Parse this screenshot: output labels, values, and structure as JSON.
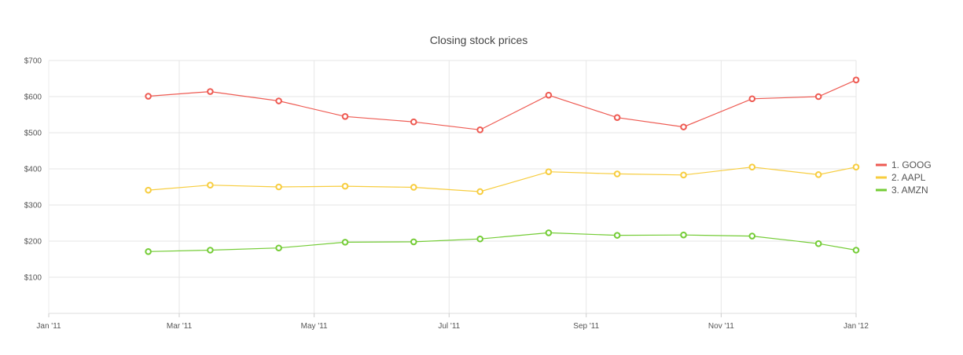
{
  "chart_data": {
    "type": "line",
    "title": "Closing stock prices",
    "xlabel": "",
    "ylabel": "",
    "x": [
      "2011-02-15",
      "2011-03-15",
      "2011-04-15",
      "2011-05-15",
      "2011-06-15",
      "2011-07-15",
      "2011-08-15",
      "2011-09-15",
      "2011-10-15",
      "2011-11-15",
      "2011-12-15",
      "2012-01-01"
    ],
    "x_ticks": [
      "Jan '11",
      "Mar '11",
      "May '11",
      "Jul '11",
      "Sep '11",
      "Nov '11",
      "Jan '12"
    ],
    "x_tick_dates": [
      "2011-01-01",
      "2011-03-01",
      "2011-05-01",
      "2011-07-01",
      "2011-09-01",
      "2011-11-01",
      "2012-01-01"
    ],
    "xlim": [
      "2011-01-01",
      "2012-01-01"
    ],
    "ylim": [
      0,
      700
    ],
    "y_ticks": [
      "$100",
      "$200",
      "$300",
      "$400",
      "$500",
      "$600",
      "$700"
    ],
    "y_tick_values": [
      100,
      200,
      300,
      400,
      500,
      600,
      700
    ],
    "grid": true,
    "legend_position": "right",
    "series": [
      {
        "name": "1. GOOG",
        "color": "#ee5a52",
        "values": [
          601,
          614,
          588,
          545,
          530,
          508,
          604,
          542,
          516,
          594,
          600,
          646
        ]
      },
      {
        "name": "2. AAPL",
        "color": "#f7cd3f",
        "values": [
          341,
          355,
          350,
          352,
          349,
          337,
          392,
          386,
          383,
          405,
          384,
          405
        ]
      },
      {
        "name": "3. AMZN",
        "color": "#74cc36",
        "values": [
          171,
          175,
          181,
          197,
          198,
          206,
          223,
          216,
          217,
          214,
          193,
          175
        ]
      }
    ]
  }
}
